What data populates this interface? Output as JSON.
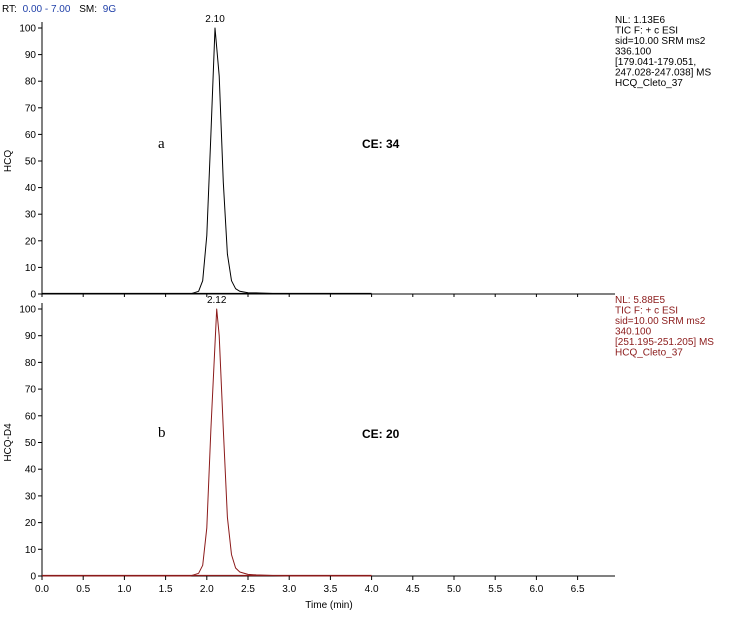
{
  "header": {
    "rt_label": "RT:",
    "rt_value": "0.00 - 7.00",
    "sm_label": "SM:",
    "sm_value": "9G"
  },
  "colors": {
    "header_value": "#1f3fa8",
    "trace_a": "#000000",
    "trace_b": "#8b1a1a",
    "meta_a": "#000000",
    "meta_b": "#8b1a1a"
  },
  "chart_data": [
    {
      "type": "line",
      "panel": "a",
      "ylabel": "HCQ",
      "ce": "CE: 34",
      "peak_label": "2.10",
      "meta": [
        "NL: 1.13E6",
        "TIC F: + c ESI",
        "sid=10.00  SRM ms2",
        "336.100",
        "[179.041-179.051,",
        "247.028-247.038]  MS",
        "HCQ_Cleto_37"
      ],
      "series": [
        {
          "x": [
            0.0,
            1.8,
            1.9,
            1.95,
            2.0,
            2.05,
            2.1,
            2.15,
            2.2,
            2.25,
            2.3,
            2.35,
            2.4,
            2.5,
            2.6,
            2.8,
            3.0,
            4.0
          ],
          "values": [
            0,
            0,
            1,
            5,
            22,
            60,
            100,
            82,
            42,
            15,
            5,
            2,
            1,
            0.5,
            0.4,
            0.2,
            0,
            0
          ]
        }
      ],
      "xlim": [
        0,
        7.0
      ],
      "ylim": [
        0,
        100
      ]
    },
    {
      "type": "line",
      "panel": "b",
      "ylabel": "HCQ-D4",
      "ce": "CE: 20",
      "peak_label": "2.12",
      "meta": [
        "NL: 5.88E5",
        "TIC F: + c ESI",
        "sid=10.00  SRM ms2",
        "340.100",
        "[251.195-251.205]  MS",
        "HCQ_Cleto_37"
      ],
      "series": [
        {
          "x": [
            0.0,
            1.8,
            1.9,
            1.95,
            2.0,
            2.05,
            2.12,
            2.15,
            2.2,
            2.25,
            2.3,
            2.35,
            2.4,
            2.5,
            2.6,
            2.8,
            3.0,
            4.0
          ],
          "values": [
            0,
            0,
            1,
            4,
            18,
            55,
            100,
            90,
            55,
            22,
            8,
            3,
            1.5,
            0.6,
            0.4,
            0.2,
            0,
            0
          ]
        }
      ],
      "xlim": [
        0,
        7.0
      ],
      "ylim": [
        0,
        100
      ]
    }
  ],
  "axes": {
    "yticks": [
      "0",
      "10",
      "20",
      "30",
      "40",
      "50",
      "60",
      "70",
      "80",
      "90",
      "100"
    ],
    "xticks": [
      "0.0",
      "0.5",
      "1.0",
      "1.5",
      "2.0",
      "2.5",
      "3.0",
      "3.5",
      "4.0",
      "4.5",
      "5.0",
      "5.5",
      "6.0",
      "6.5"
    ],
    "xlabel": "Time (min)"
  }
}
